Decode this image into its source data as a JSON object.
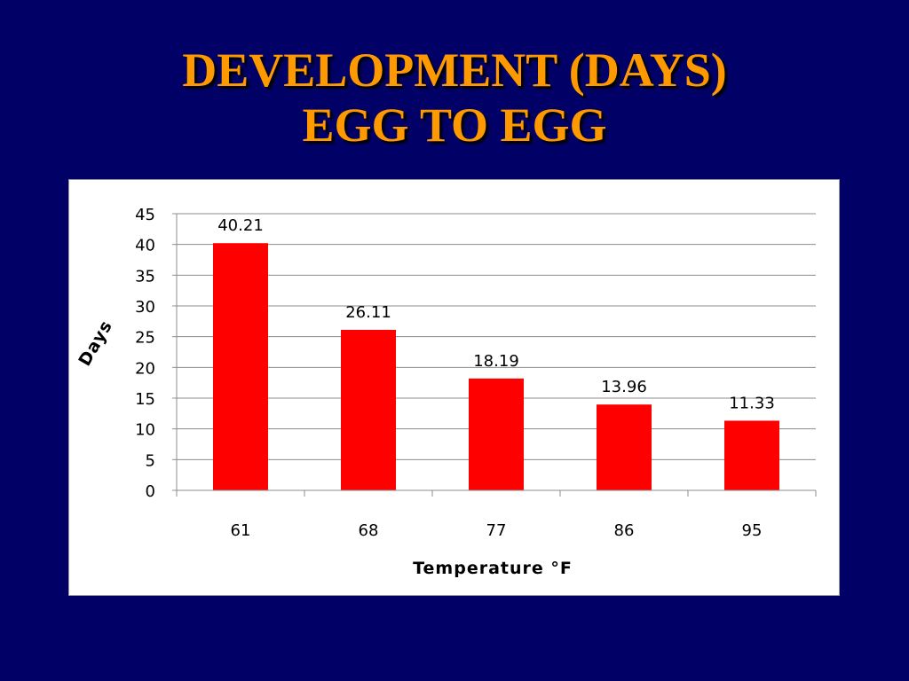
{
  "slide": {
    "title_line1": "DEVELOPMENT (DAYS)",
    "title_line2": "EGG TO EGG",
    "title_color": "#FF9900",
    "background_color": "#000066"
  },
  "chart_data": {
    "type": "bar",
    "categories": [
      "61",
      "68",
      "77",
      "86",
      "95"
    ],
    "values": [
      40.21,
      26.11,
      18.19,
      13.96,
      11.33
    ],
    "data_labels": [
      "40.21",
      "26.11",
      "18.19",
      "13.96",
      "11.33"
    ],
    "xlabel": "Temperature °F",
    "ylabel": "Days",
    "ylim": [
      0,
      45
    ],
    "yticks": [
      0,
      5,
      10,
      15,
      20,
      25,
      30,
      35,
      40,
      45
    ],
    "grid": true,
    "legend": "none",
    "bar_color": "#FF0000"
  }
}
